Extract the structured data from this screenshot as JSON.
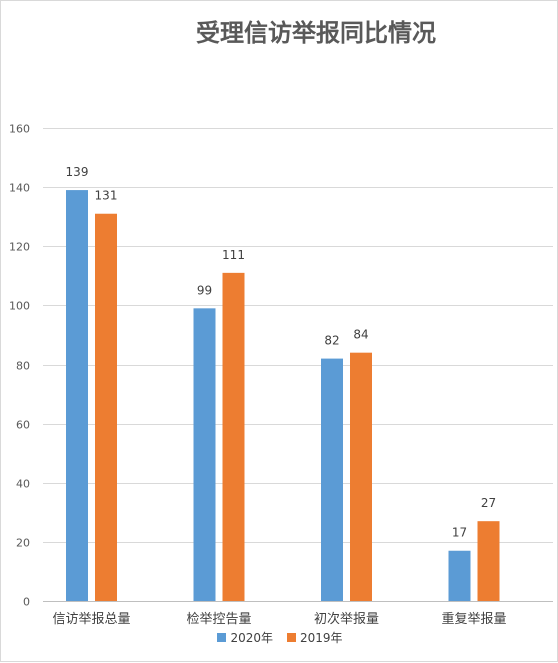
{
  "chart_data": {
    "type": "bar",
    "title": "受理信访举报同比情况",
    "categories": [
      "信访举报总量",
      "检举控告量",
      "初次举报量",
      "重复举报量"
    ],
    "series": [
      {
        "name": "2020年",
        "values": [
          139,
          99,
          82,
          17
        ],
        "color": "#5b9bd5"
      },
      {
        "name": "2019年",
        "values": [
          131,
          111,
          84,
          27
        ],
        "color": "#ed7d31"
      }
    ],
    "ylim": [
      0,
      160
    ],
    "yticks": [
      0,
      20,
      40,
      60,
      80,
      100,
      120,
      140,
      160
    ],
    "xlabel": "",
    "ylabel": "",
    "grid": true,
    "legend": "bottom",
    "data_labels": true
  }
}
